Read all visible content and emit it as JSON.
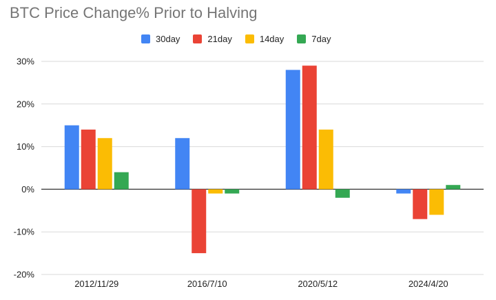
{
  "chart_data": {
    "type": "bar",
    "title": "BTC Price Change% Prior to Halving",
    "xlabel": "",
    "ylabel": "",
    "categories": [
      "2012/11/29",
      "2016/7/10",
      "2020/5/12",
      "2024/4/20"
    ],
    "series": [
      {
        "name": "30day",
        "color": "#4285f4",
        "values": [
          15,
          12,
          28,
          -1
        ]
      },
      {
        "name": "21day",
        "color": "#ea4335",
        "values": [
          14,
          -15,
          29,
          -7
        ]
      },
      {
        "name": "14day",
        "color": "#fbbc04",
        "values": [
          12,
          -1,
          14,
          -6
        ]
      },
      {
        "name": "7day",
        "color": "#34a853",
        "values": [
          4,
          -1,
          -2,
          1
        ]
      }
    ],
    "ylim": [
      -20,
      30
    ],
    "yticks": [
      "30%",
      "20%",
      "10%",
      "0%",
      "-10%",
      "-20%"
    ],
    "grid": true,
    "legend": "top"
  }
}
